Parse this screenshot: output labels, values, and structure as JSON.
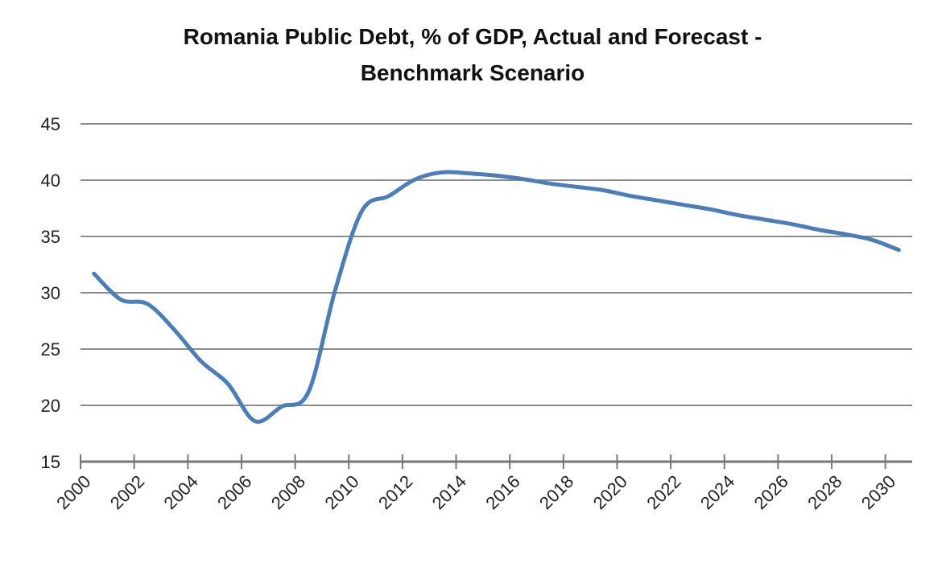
{
  "chart_data": {
    "type": "line",
    "title": [
      "Romania Public Debt, % of GDP, Actual and Forecast -",
      "Benchmark Scenario"
    ],
    "xlabel": "",
    "ylabel": "",
    "ylim": [
      15,
      45
    ],
    "yticks": [
      15,
      20,
      25,
      30,
      35,
      40,
      45
    ],
    "xtick_labels": [
      "2000",
      "2002",
      "2004",
      "2006",
      "2008",
      "2010",
      "2012",
      "2014",
      "2016",
      "2018",
      "2020",
      "2022",
      "2024",
      "2026",
      "2028",
      "2030"
    ],
    "grid": true,
    "legend": "none",
    "line_color": "#4a7ebb",
    "series": [
      {
        "name": "Public Debt % of GDP",
        "x": [
          2000,
          2001,
          2002,
          2003,
          2004,
          2005,
          2006,
          2007,
          2008,
          2009,
          2010,
          2011,
          2012,
          2013,
          2014,
          2015,
          2016,
          2017,
          2018,
          2019,
          2020,
          2021,
          2022,
          2023,
          2024,
          2025,
          2026,
          2027,
          2028,
          2029,
          2030
        ],
        "values": [
          31.7,
          29.4,
          29.0,
          26.7,
          23.9,
          21.9,
          18.6,
          19.9,
          21.2,
          30.3,
          37.3,
          38.6,
          40.1,
          40.7,
          40.6,
          40.4,
          40.1,
          39.7,
          39.4,
          39.1,
          38.6,
          38.2,
          37.8,
          37.4,
          36.9,
          36.5,
          36.1,
          35.6,
          35.2,
          34.7,
          33.8
        ]
      }
    ]
  }
}
